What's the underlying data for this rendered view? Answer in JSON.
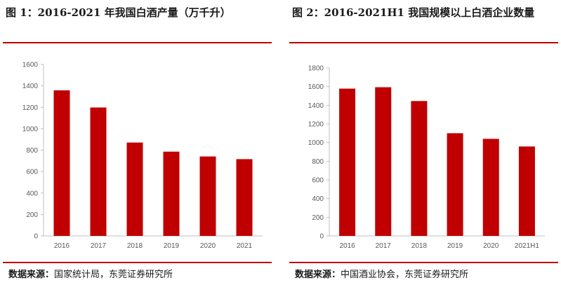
{
  "figures": [
    {
      "title": "图 1：2016-2021 年我国白酒产量（万千升）",
      "source_label": "数据来源：",
      "source_text": "国家统计局，东莞证券研究所"
    },
    {
      "title": "图 2：2016-2021H1 我国规模以上白酒企业数量",
      "source_label": "数据来源：",
      "source_text": "中国酒业协会，东莞证券研究所"
    }
  ],
  "colors": {
    "bar": "#c00000",
    "rule": "#c00000",
    "axis": "#bfbfbf",
    "tick_text": "#595959"
  },
  "chart_data": [
    {
      "type": "bar",
      "title": "",
      "categories": [
        "2016",
        "2017",
        "2018",
        "2019",
        "2020",
        "2021"
      ],
      "series": [
        {
          "values": [
            1358,
            1198,
            871,
            786,
            741,
            716
          ]
        }
      ],
      "ylim": [
        0,
        1600
      ],
      "yticks": [
        0,
        200,
        400,
        600,
        800,
        1000,
        1200,
        1400,
        1600
      ],
      "grid": false,
      "legend": "none"
    },
    {
      "type": "bar",
      "title": "",
      "categories": [
        "2016",
        "2017",
        "2018",
        "2019",
        "2020",
        "2021H1"
      ],
      "series": [
        {
          "values": [
            1578,
            1593,
            1445,
            1100,
            1040,
            958
          ]
        }
      ],
      "ylim": [
        0,
        1800
      ],
      "yticks": [
        0,
        200,
        400,
        600,
        800,
        1000,
        1200,
        1400,
        1600,
        1800
      ],
      "grid": false,
      "legend": "none"
    }
  ]
}
